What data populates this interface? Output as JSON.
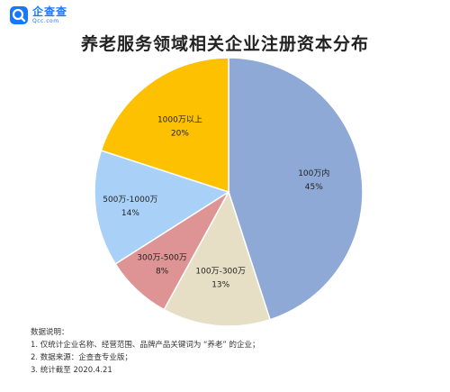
{
  "brand": {
    "name": "企查查",
    "url": "Qcc.com",
    "color": "#1677ff"
  },
  "chart_data": {
    "type": "pie",
    "title": "养老服务领域相关企业注册资本分布",
    "start_angle_deg": 0,
    "direction": "clockwise",
    "slices": [
      {
        "label": "100万内",
        "value": 45,
        "value_label": "45%",
        "color": "#8ea9d6"
      },
      {
        "label": "100万-300万",
        "value": 13,
        "value_label": "13%",
        "color": "#e6dfc6"
      },
      {
        "label": "300万-500万",
        "value": 8,
        "value_label": "8%",
        "color": "#de9394"
      },
      {
        "label": "500万-1000万",
        "value": 14,
        "value_label": "14%",
        "color": "#a9d1f7"
      },
      {
        "label": "1000万以上",
        "value": 20,
        "value_label": "20%",
        "color": "#fdc101"
      }
    ]
  },
  "notes": {
    "heading": "数据说明：",
    "items": [
      "1. 仅统计企业名称、经营范围、品牌产品关键词为 “养老” 的企业；",
      "2. 数据来源：企查查专业版；",
      "3. 统计截至 2020.4.21"
    ]
  }
}
